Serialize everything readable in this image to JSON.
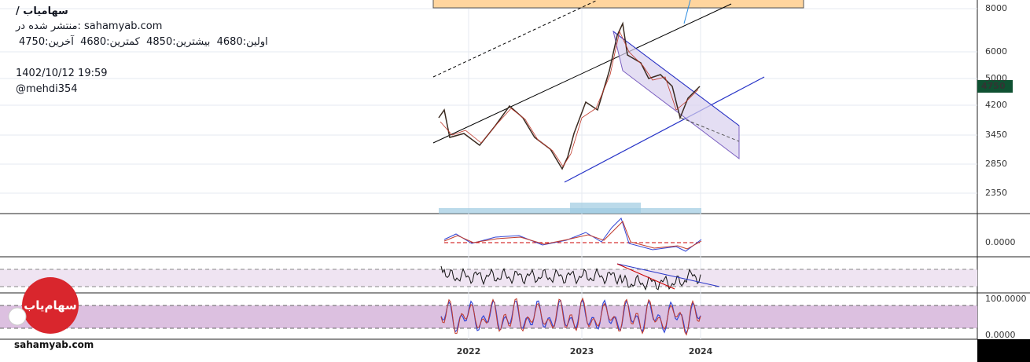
{
  "header": {
    "title": "/ سهامیاب",
    "published": "منتشر شده در: sahamyab.com",
    "ohlc": "اولین:4680  بیشترین:4850  کمترین:4680  آخرین:4750",
    "datetime": "1402/10/12 19:59",
    "author": "@mehdi354"
  },
  "price_axis": [
    "8000",
    "6000",
    "5000",
    "4200",
    "3450",
    "2850",
    "2350"
  ],
  "last_price": "4750",
  "macd_axis": [
    "0.0000"
  ],
  "stoch_axis": [
    "100.0000",
    "0.0000"
  ],
  "time_axis": [
    "2022",
    "2023",
    "2024"
  ],
  "logo": "سهام‌یاب",
  "watermark": "sahamyab.com"
}
